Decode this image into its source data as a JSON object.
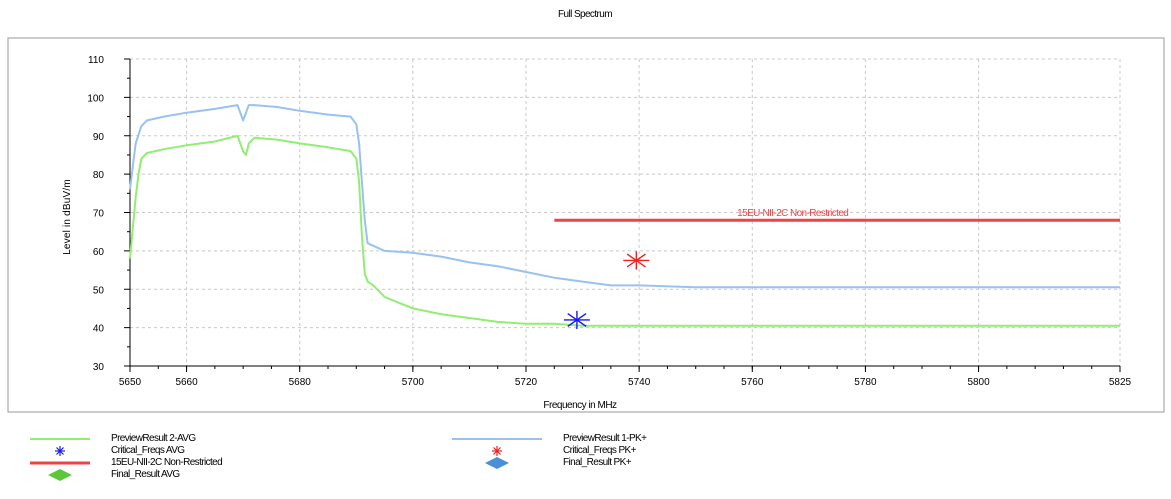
{
  "chart_data": {
    "type": "line",
    "title": "Full Spectrum",
    "xlabel": "Frequency in MHz",
    "ylabel": "Level in dBuV/m",
    "xlim": [
      5650,
      5825
    ],
    "ylim": [
      30,
      110
    ],
    "xticks": [
      5650,
      5660,
      5680,
      5700,
      5720,
      5740,
      5760,
      5780,
      5800,
      5825
    ],
    "yticks": [
      30,
      40,
      50,
      60,
      70,
      80,
      90,
      100,
      110
    ],
    "grid": true,
    "series": [
      {
        "name": "PreviewResult 1-PK+",
        "color": "#99c2ee",
        "x": [
          5650,
          5650.5,
          5651,
          5652,
          5653,
          5656,
          5660,
          5665,
          5669,
          5670,
          5671,
          5672,
          5676,
          5680,
          5685,
          5689,
          5690,
          5690.5,
          5691,
          5691.5,
          5692,
          5695,
          5700,
          5705,
          5710,
          5715,
          5720,
          5725,
          5730,
          5735,
          5740,
          5750,
          5760,
          5770,
          5780,
          5790,
          5800,
          5810,
          5820,
          5825
        ],
        "values": [
          76,
          82,
          88,
          92.5,
          94,
          95,
          96,
          97,
          98,
          94,
          98,
          98,
          97.5,
          96.5,
          95.5,
          95,
          93,
          88,
          78,
          68,
          62,
          60,
          59.5,
          58.5,
          57,
          56,
          54.5,
          53,
          52,
          51,
          51,
          50.5,
          50.5,
          50.5,
          50.5,
          50.5,
          50.5,
          50.5,
          50.5,
          50.5
        ]
      },
      {
        "name": "PreviewResult 2-AVG",
        "color": "#90ee72",
        "x": [
          5650,
          5650.5,
          5651,
          5651.5,
          5652,
          5653,
          5656,
          5660,
          5665,
          5669,
          5670,
          5670.5,
          5671,
          5672,
          5676,
          5680,
          5685,
          5689,
          5690,
          5690.5,
          5691,
          5691.5,
          5692,
          5693,
          5695,
          5700,
          5705,
          5710,
          5715,
          5720,
          5725,
          5730,
          5740,
          5760,
          5780,
          5800,
          5825
        ],
        "values": [
          58,
          66,
          74,
          80,
          84,
          85.5,
          86.5,
          87.5,
          88.5,
          90,
          86,
          85,
          88,
          89.5,
          89,
          88,
          87,
          86,
          84,
          78,
          64,
          54,
          52,
          51,
          48,
          45,
          43.5,
          42.5,
          41.5,
          41,
          41,
          40.5,
          40.5,
          40.5,
          40.5,
          40.5,
          40.5
        ]
      },
      {
        "name": "15EU-NII-2C Non-Restricted",
        "color": "#ee4444",
        "x": [
          5725,
          5825
        ],
        "values": [
          68,
          68
        ]
      }
    ],
    "markers": [
      {
        "name": "Critical_Freqs PK+",
        "color": "#ee2222",
        "x": 5739.5,
        "y": 57.5
      },
      {
        "name": "Critical_Freqs AVG",
        "color": "#1a1aee",
        "x": 5729,
        "y": 42
      }
    ],
    "annotations": [
      {
        "text": "15EU-NII-2C Non-Restricted",
        "x": 5775,
        "y": 68,
        "color": "#ee4444"
      }
    ],
    "legend_position": "bottom",
    "legend": {
      "left": [
        {
          "label": "PreviewResult 2-AVG",
          "symbol": "line",
          "color": "#90ee72"
        },
        {
          "label": "Critical_Freqs AVG",
          "symbol": "star",
          "color": "#1a1aee"
        },
        {
          "label": "15EU-NII-2C Non-Restricted",
          "symbol": "line",
          "color": "#ee4444"
        },
        {
          "label": "Final_Result AVG",
          "symbol": "diamond",
          "color": "#5bc73a"
        }
      ],
      "right": [
        {
          "label": "PreviewResult 1-PK+",
          "symbol": "line",
          "color": "#99c2ee"
        },
        {
          "label": "Critical_Freqs PK+",
          "symbol": "star",
          "color": "#ee2222"
        },
        {
          "label": "Final_Result PK+",
          "symbol": "diamond",
          "color": "#4a90d9"
        }
      ]
    }
  }
}
